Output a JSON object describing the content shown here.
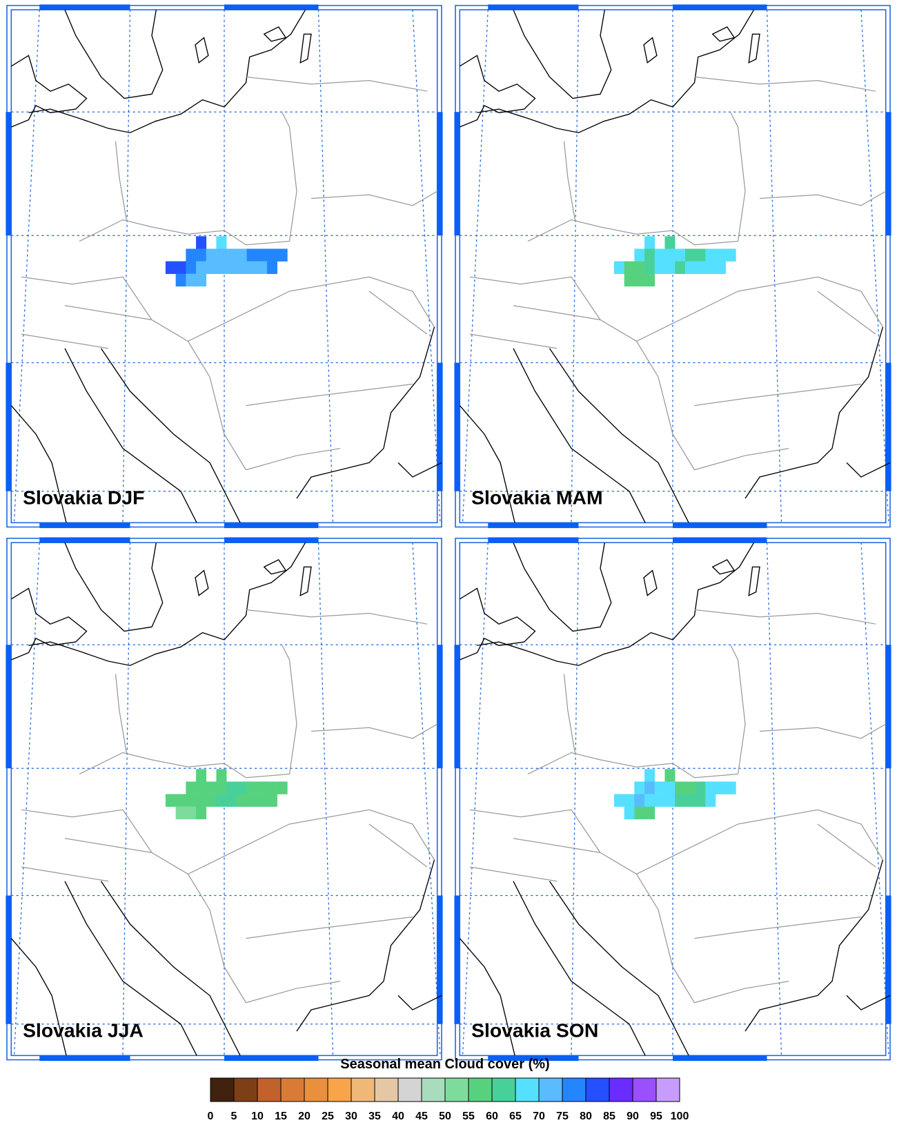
{
  "panels": [
    {
      "title": "Slovakia DJF",
      "cells": [
        [
          null,
          null,
          null,
          82,
          null,
          67,
          null,
          null,
          null,
          null,
          null,
          null
        ],
        [
          null,
          null,
          77,
          77,
          72,
          72,
          72,
          72,
          77,
          77,
          77,
          77
        ],
        [
          82,
          82,
          77,
          72,
          72,
          72,
          72,
          72,
          72,
          72,
          77,
          null
        ],
        [
          null,
          77,
          72,
          72,
          null,
          null,
          null,
          null,
          null,
          null,
          null,
          null
        ]
      ]
    },
    {
      "title": "Slovakia MAM",
      "cells": [
        [
          null,
          null,
          null,
          67,
          null,
          62,
          null,
          null,
          null,
          null,
          null,
          null
        ],
        [
          null,
          null,
          67,
          62,
          67,
          67,
          67,
          62,
          62,
          67,
          67,
          67
        ],
        [
          67,
          57,
          57,
          62,
          67,
          67,
          62,
          67,
          67,
          67,
          67,
          null
        ],
        [
          null,
          57,
          57,
          57,
          null,
          null,
          null,
          null,
          null,
          null,
          null,
          null
        ]
      ]
    },
    {
      "title": "Slovakia JJA",
      "cells": [
        [
          null,
          null,
          null,
          57,
          null,
          57,
          null,
          null,
          null,
          null,
          null,
          null
        ],
        [
          null,
          null,
          57,
          57,
          57,
          57,
          62,
          62,
          57,
          57,
          57,
          57
        ],
        [
          57,
          57,
          57,
          57,
          57,
          62,
          62,
          57,
          57,
          57,
          57,
          null
        ],
        [
          null,
          52,
          52,
          57,
          null,
          null,
          null,
          null,
          null,
          null,
          null,
          null
        ]
      ]
    },
    {
      "title": "Slovakia SON",
      "cells": [
        [
          null,
          null,
          null,
          67,
          null,
          57,
          null,
          null,
          null,
          null,
          null,
          null
        ],
        [
          null,
          null,
          67,
          72,
          67,
          67,
          57,
          57,
          62,
          67,
          67,
          67
        ],
        [
          67,
          67,
          72,
          67,
          67,
          67,
          62,
          62,
          62,
          67,
          null,
          null
        ],
        [
          null,
          67,
          57,
          57,
          null,
          null,
          null,
          null,
          null,
          null,
          null,
          null
        ]
      ]
    }
  ],
  "colorbar": {
    "title": "Seasonal mean Cloud cover (%)",
    "ticks": [
      0,
      5,
      10,
      15,
      20,
      25,
      30,
      35,
      40,
      45,
      50,
      55,
      60,
      65,
      70,
      75,
      80,
      85,
      90,
      95,
      100
    ],
    "colors": [
      "#40220f",
      "#7f3f16",
      "#c0622a",
      "#d97b34",
      "#ea8f3c",
      "#f9a44a",
      "#f0b878",
      "#e4c8a6",
      "#d4d4d4",
      "#a8dcbc",
      "#7ddc9c",
      "#56d27f",
      "#48d09a",
      "#56e0ff",
      "#58bcff",
      "#2486ff",
      "#2450ff",
      "#6a2cff",
      "#9a50ff",
      "#c89cff"
    ]
  }
}
